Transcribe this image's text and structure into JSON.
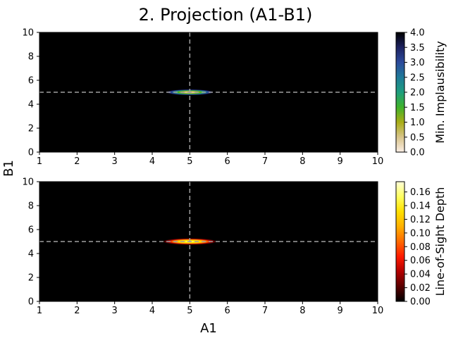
{
  "chart_data": {
    "title": "2. Projection (A1-B1)",
    "type": "heatmap",
    "shared_xlabel": "A1",
    "shared_ylabel": "B1",
    "panels": [
      {
        "name": "min_implausibility",
        "type": "heatmap",
        "xlim": [
          1,
          10
        ],
        "ylim": [
          0,
          10
        ],
        "xticks": [
          1,
          2,
          3,
          4,
          5,
          6,
          7,
          8,
          9,
          10
        ],
        "yticks": [
          0,
          2,
          4,
          6,
          8,
          10
        ],
        "background": "#000000",
        "reference_lines": {
          "x": 5,
          "y": 5,
          "style": "dashed",
          "color": "#a0a0a0"
        },
        "feature": {
          "center_x": 5.0,
          "center_y": 5.0,
          "half_width_x": 0.65,
          "half_width_y": 0.25,
          "peak_value": 0.0,
          "edge_value": 4.0
        },
        "colorbar": {
          "label": "Min. Implausibility",
          "range": [
            0,
            4
          ],
          "ticks": [
            "0.0",
            "0.5",
            "1.0",
            "1.5",
            "2.0",
            "2.5",
            "3.0",
            "3.5",
            "4.0"
          ],
          "tick_values": [
            0,
            0.5,
            1.0,
            1.5,
            2.0,
            2.5,
            3.0,
            3.5,
            4.0
          ],
          "colormap": "gist_earth_r",
          "stops": [
            "#fbeee4",
            "#d8c48a",
            "#a9ad16",
            "#3fb22a",
            "#1e9e7e",
            "#1f7a99",
            "#2c4a9b",
            "#1d2260",
            "#000000"
          ]
        }
      },
      {
        "name": "line_of_sight_depth",
        "type": "heatmap",
        "xlim": [
          1,
          10
        ],
        "ylim": [
          0,
          10
        ],
        "xticks": [
          1,
          2,
          3,
          4,
          5,
          6,
          7,
          8,
          9,
          10
        ],
        "yticks": [
          0,
          2,
          4,
          6,
          8,
          10
        ],
        "background": "#000000",
        "reference_lines": {
          "x": 5,
          "y": 5,
          "style": "dashed",
          "color": "#a0a0a0"
        },
        "feature": {
          "center_x": 5.0,
          "center_y": 5.0,
          "half_width_x": 0.75,
          "half_width_y": 0.28,
          "peak_value": 0.17,
          "edge_value": 0.0
        },
        "colorbar": {
          "label": "Line-of-Sight Depth",
          "range": [
            0,
            0.175
          ],
          "ticks": [
            "0.00",
            "0.02",
            "0.04",
            "0.06",
            "0.08",
            "0.10",
            "0.12",
            "0.14",
            "0.16"
          ],
          "tick_values": [
            0,
            0.02,
            0.04,
            0.06,
            0.08,
            0.1,
            0.12,
            0.14,
            0.16
          ],
          "colormap": "hot",
          "stops": [
            "#000000",
            "#5a0000",
            "#b30000",
            "#ff1a00",
            "#ff6a00",
            "#ffb000",
            "#ffe000",
            "#ffff60",
            "#ffffd8"
          ]
        }
      }
    ]
  }
}
